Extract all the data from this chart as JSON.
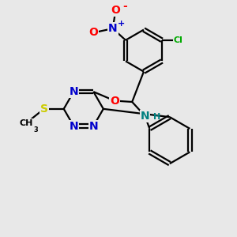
{
  "bg_color": "#e8e8e8",
  "bond_color": "#000000",
  "bond_width": 1.6,
  "atom_colors": {
    "N": "#0000cc",
    "O": "#ff0000",
    "S": "#cccc00",
    "Cl": "#00aa00",
    "NH": "#008080",
    "C": "#000000"
  },
  "font_size_atom": 10,
  "font_size_small": 8,
  "xlim": [
    0,
    10
  ],
  "ylim": [
    0,
    10
  ]
}
